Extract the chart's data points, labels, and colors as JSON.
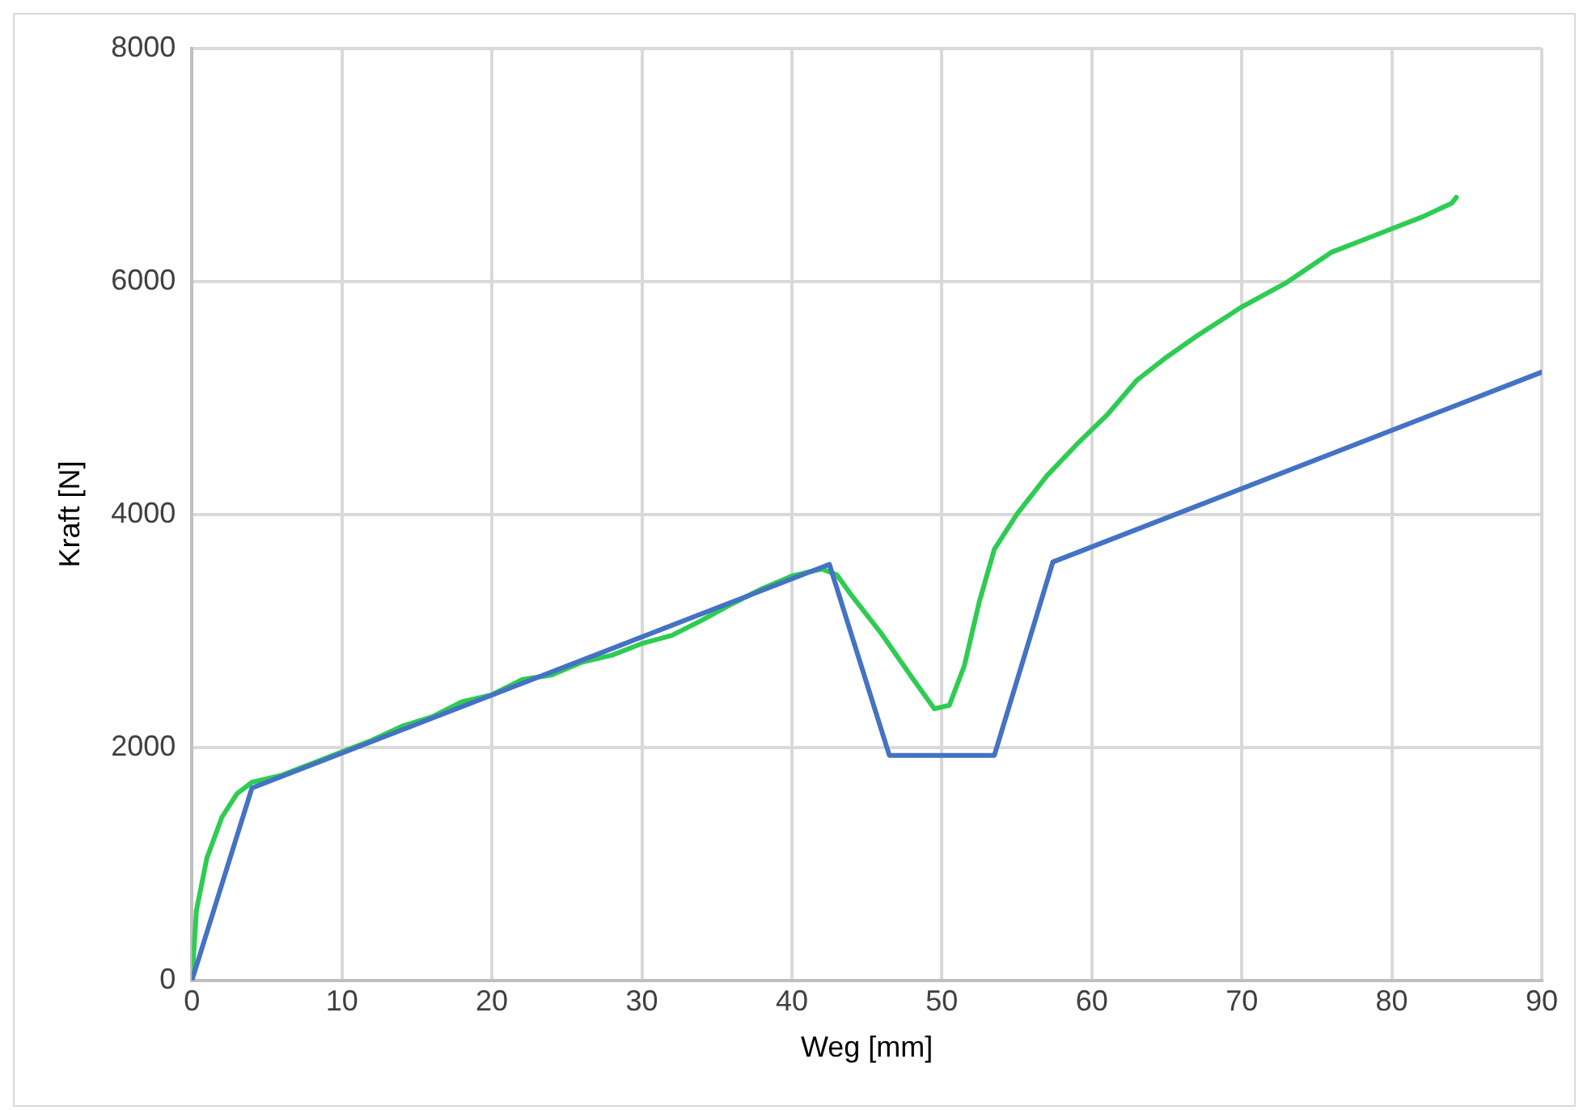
{
  "chart_data": {
    "type": "line",
    "xlabel": "Weg [mm]",
    "ylabel": "Kraft [N]",
    "xlim": [
      0,
      90
    ],
    "xticks": [
      0,
      10,
      20,
      30,
      40,
      50,
      60,
      70,
      80,
      90
    ],
    "ylim": [
      0,
      8000
    ],
    "yticks": [
      0,
      2000,
      4000,
      6000,
      8000
    ],
    "grid": true,
    "legend": false,
    "marker": "none",
    "line_style": "solid",
    "series": [
      {
        "color": "#4472c4",
        "x": [
          0,
          4,
          42.5,
          46.5,
          53.5,
          57.4,
          90
        ],
        "values": [
          0,
          1650,
          3570,
          1930,
          1930,
          3590,
          5220
        ]
      },
      {
        "color": "#2ecc52",
        "x": [
          0,
          0.3,
          1,
          2,
          3,
          4,
          6,
          8,
          10,
          12,
          14,
          16,
          18,
          20,
          22,
          24,
          26,
          28,
          30,
          32,
          34,
          36,
          38,
          40,
          42,
          43,
          44,
          46,
          48,
          49.5,
          50.5,
          51.5,
          52.5,
          53.5,
          55,
          57,
          59,
          61,
          63,
          65,
          67,
          70,
          73,
          76,
          78,
          80,
          82,
          84,
          84.3
        ],
        "values": [
          0,
          600,
          1050,
          1400,
          1600,
          1700,
          1760,
          1860,
          1960,
          2060,
          2180,
          2260,
          2390,
          2450,
          2580,
          2620,
          2730,
          2790,
          2890,
          2960,
          3090,
          3230,
          3360,
          3470,
          3530,
          3480,
          3300,
          2970,
          2600,
          2330,
          2360,
          2700,
          3250,
          3700,
          4000,
          4330,
          4600,
          4850,
          5150,
          5350,
          5530,
          5780,
          5990,
          6250,
          6350,
          6450,
          6550,
          6670,
          6720
        ]
      }
    ]
  }
}
